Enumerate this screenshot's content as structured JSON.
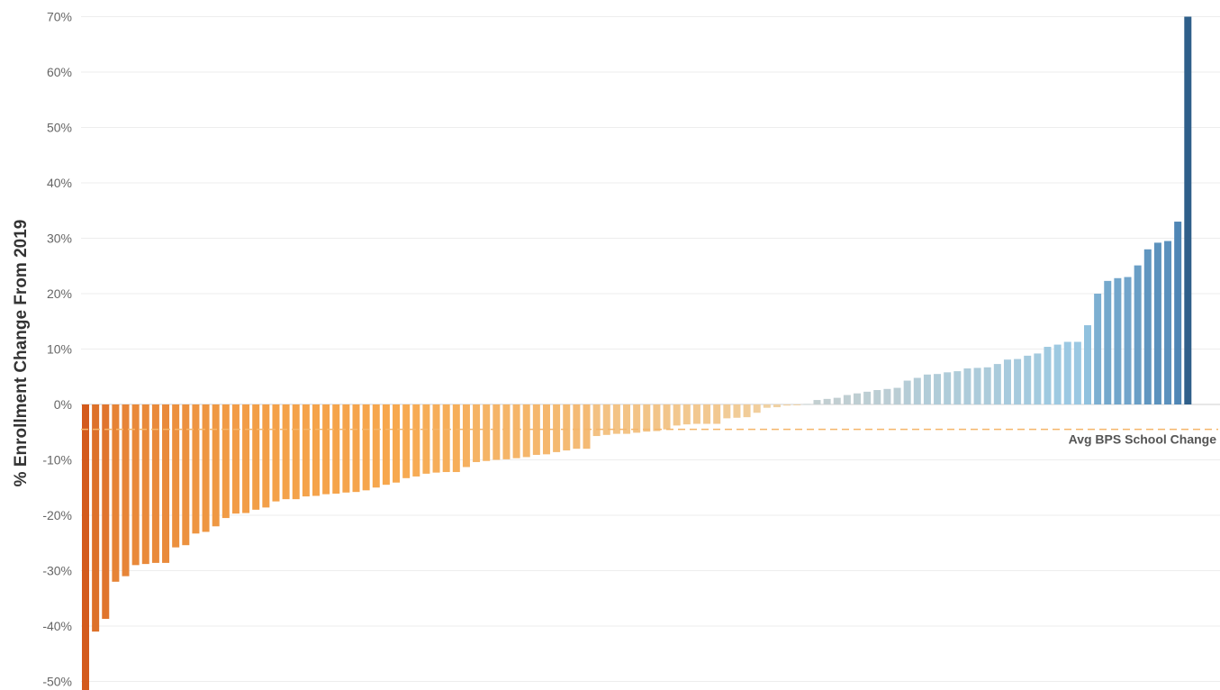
{
  "chart_data": {
    "type": "bar",
    "ylabel": "% Enrollment Change From 2019",
    "ylim": [
      -50,
      70
    ],
    "y_ticks": [
      70,
      60,
      50,
      40,
      30,
      20,
      10,
      0,
      -10,
      -20,
      -30,
      -40,
      -50
    ],
    "y_tick_labels": [
      "70%",
      "60%",
      "50%",
      "40%",
      "30%",
      "20%",
      "10%",
      "0%",
      "-10%",
      "-20%",
      "-30%",
      "-40%",
      "-50%"
    ],
    "grid": true,
    "reference_line": {
      "label": "Avg BPS School Change",
      "value": -4.5
    },
    "color_scale": {
      "negative_extreme": "#d35a1c",
      "negative_mid": "#f7a84e",
      "neutral_neg": "#f0d3a6",
      "neutral_pos": "#c5cfcf",
      "positive_mid": "#98c8e3",
      "positive_extreme": "#2f5f8a"
    },
    "values": [
      -52,
      -41,
      -38.7,
      -32,
      -31,
      -29,
      -28.8,
      -28.6,
      -28.6,
      -25.8,
      -25.4,
      -23.3,
      -23,
      -22,
      -20.5,
      -19.7,
      -19.6,
      -19,
      -18.6,
      -17.5,
      -17.1,
      -17.1,
      -16.6,
      -16.5,
      -16.2,
      -16.1,
      -15.9,
      -15.8,
      -15.5,
      -15,
      -14.5,
      -14.1,
      -13.3,
      -13,
      -12.5,
      -12.3,
      -12.2,
      -12.2,
      -11.3,
      -10.4,
      -10.2,
      -10,
      -9.9,
      -9.7,
      -9.5,
      -9.1,
      -9,
      -8.6,
      -8.3,
      -8,
      -8,
      -5.7,
      -5.5,
      -5.3,
      -5.3,
      -5.1,
      -4.9,
      -4.8,
      -4.5,
      -3.8,
      -3.6,
      -3.5,
      -3.5,
      -3.5,
      -2.5,
      -2.4,
      -2.3,
      -1.5,
      -0.6,
      -0.5,
      -0.2,
      -0.1,
      0.1,
      0.8,
      1,
      1.2,
      1.7,
      2,
      2.3,
      2.6,
      2.8,
      3,
      4.3,
      4.8,
      5.4,
      5.5,
      5.8,
      6,
      6.5,
      6.6,
      6.7,
      7.3,
      8.1,
      8.2,
      8.8,
      9.2,
      10.4,
      10.8,
      11.3,
      11.3,
      14.3,
      20,
      22.3,
      22.8,
      23,
      25.1,
      28,
      29.2,
      29.5,
      33,
      70
    ]
  }
}
